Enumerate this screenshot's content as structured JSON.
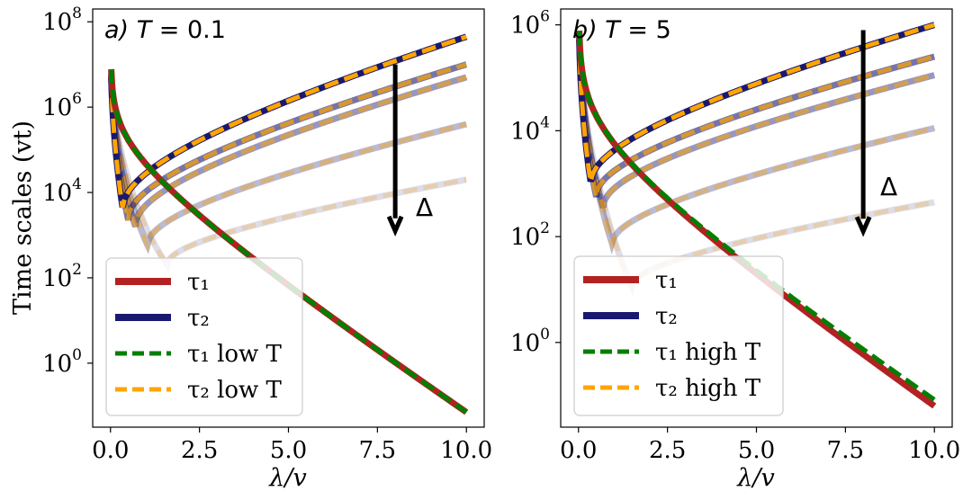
{
  "chart_data": [
    {
      "type": "line",
      "title": "a) T = 0.1",
      "title_parts": {
        "label": "a)",
        "var": "T",
        "eq": " = 0.1"
      },
      "xlabel": "λ/v",
      "ylabel": "Time scales (vt)",
      "xlim": [
        -0.5,
        10.5
      ],
      "ylim_log10": [
        -1.5,
        8.3
      ],
      "xticks": [
        "0.0",
        "2.5",
        "5.0",
        "7.5",
        "10.0"
      ],
      "xtick_values": [
        0,
        2.5,
        5,
        7.5,
        10
      ],
      "yticks": [
        {
          "base": "10",
          "exp": "0"
        },
        {
          "base": "10",
          "exp": "2"
        },
        {
          "base": "10",
          "exp": "4"
        },
        {
          "base": "10",
          "exp": "6"
        },
        {
          "base": "10",
          "exp": "8"
        }
      ],
      "ytick_values": [
        0,
        2,
        4,
        6,
        8
      ],
      "legend": [
        {
          "label": "τ₁",
          "color": "#b22222",
          "style": "solid"
        },
        {
          "label": "τ₂",
          "color": "#191970",
          "style": "solid"
        },
        {
          "label": "τ₁ low T",
          "color": "#008000",
          "style": "dashed"
        },
        {
          "label": "τ₂ low T",
          "color": "#ffa500",
          "style": "dashed"
        }
      ],
      "legend_position": "lower-left",
      "annotation": {
        "text": "Δ",
        "arrow_x": 8.0,
        "arrow_from_log10": 7.0,
        "arrow_to_log10": 3.1
      },
      "tau1": {
        "x0": 0.05,
        "log10_at_x0": 6.5,
        "log10_at_x10": -1.15
      },
      "tau2_series": [
        {
          "name": "τ₂ (Δ level 1)",
          "min_x": 0.35,
          "min_log10": 3.6,
          "end_log10": 7.65,
          "alpha": 1.0
        },
        {
          "name": "τ₂ (Δ level 2)",
          "min_x": 0.5,
          "min_log10": 3.35,
          "end_log10": 7.0,
          "alpha": 0.6
        },
        {
          "name": "τ₂ (Δ level 3)",
          "min_x": 0.7,
          "min_log10": 3.2,
          "end_log10": 6.7,
          "alpha": 0.45
        },
        {
          "name": "τ₂ (Δ level 4)",
          "min_x": 1.05,
          "min_log10": 2.75,
          "end_log10": 5.6,
          "alpha": 0.3
        },
        {
          "name": "τ₂ (Δ level 5)",
          "min_x": 1.6,
          "min_log10": 2.3,
          "end_log10": 4.3,
          "alpha": 0.15
        }
      ]
    },
    {
      "type": "line",
      "title": "b) T = 5",
      "title_parts": {
        "label": "b)",
        "var": "T",
        "eq": " = 5"
      },
      "xlabel": "λ/v",
      "ylabel": "",
      "xlim": [
        -0.5,
        10.5
      ],
      "ylim_log10": [
        -1.6,
        6.3
      ],
      "xticks": [
        "0.0",
        "2.5",
        "5.0",
        "7.5",
        "10.0"
      ],
      "xtick_values": [
        0,
        2.5,
        5,
        7.5,
        10
      ],
      "yticks": [
        {
          "base": "10",
          "exp": "0"
        },
        {
          "base": "10",
          "exp": "2"
        },
        {
          "base": "10",
          "exp": "4"
        },
        {
          "base": "10",
          "exp": "6"
        }
      ],
      "ytick_values": [
        0,
        2,
        4,
        6
      ],
      "legend": [
        {
          "label": "τ₁",
          "color": "#b22222",
          "style": "solid"
        },
        {
          "label": "τ₂",
          "color": "#191970",
          "style": "solid"
        },
        {
          "label": "τ₁ high T",
          "color": "#008000",
          "style": "dashed"
        },
        {
          "label": "τ₂ high T",
          "color": "#ffa500",
          "style": "dashed"
        }
      ],
      "legend_position": "lower-left",
      "annotation": {
        "text": "Δ",
        "arrow_x": 8.0,
        "arrow_from_log10": 5.9,
        "arrow_to_log10": 2.1
      },
      "tau1": {
        "x0": 0.05,
        "log10_at_x0": 5.5,
        "log10_at_x10": -1.2
      },
      "tau2_series": [
        {
          "name": "τ₂ (Δ level 1)",
          "min_x": 0.35,
          "min_log10": 3.0,
          "end_log10": 6.0,
          "alpha": 1.0
        },
        {
          "name": "τ₂ (Δ level 2)",
          "min_x": 0.5,
          "min_log10": 2.75,
          "end_log10": 5.4,
          "alpha": 0.6
        },
        {
          "name": "τ₂ (Δ level 3)",
          "min_x": 0.7,
          "min_log10": 2.55,
          "end_log10": 5.05,
          "alpha": 0.45
        },
        {
          "name": "τ₂ (Δ level 4)",
          "min_x": 0.95,
          "min_log10": 1.85,
          "end_log10": 4.05,
          "alpha": 0.3
        },
        {
          "name": "τ₂ (Δ level 5)",
          "min_x": 1.5,
          "min_log10": 1.05,
          "end_log10": 2.65,
          "alpha": 0.15
        }
      ]
    }
  ]
}
